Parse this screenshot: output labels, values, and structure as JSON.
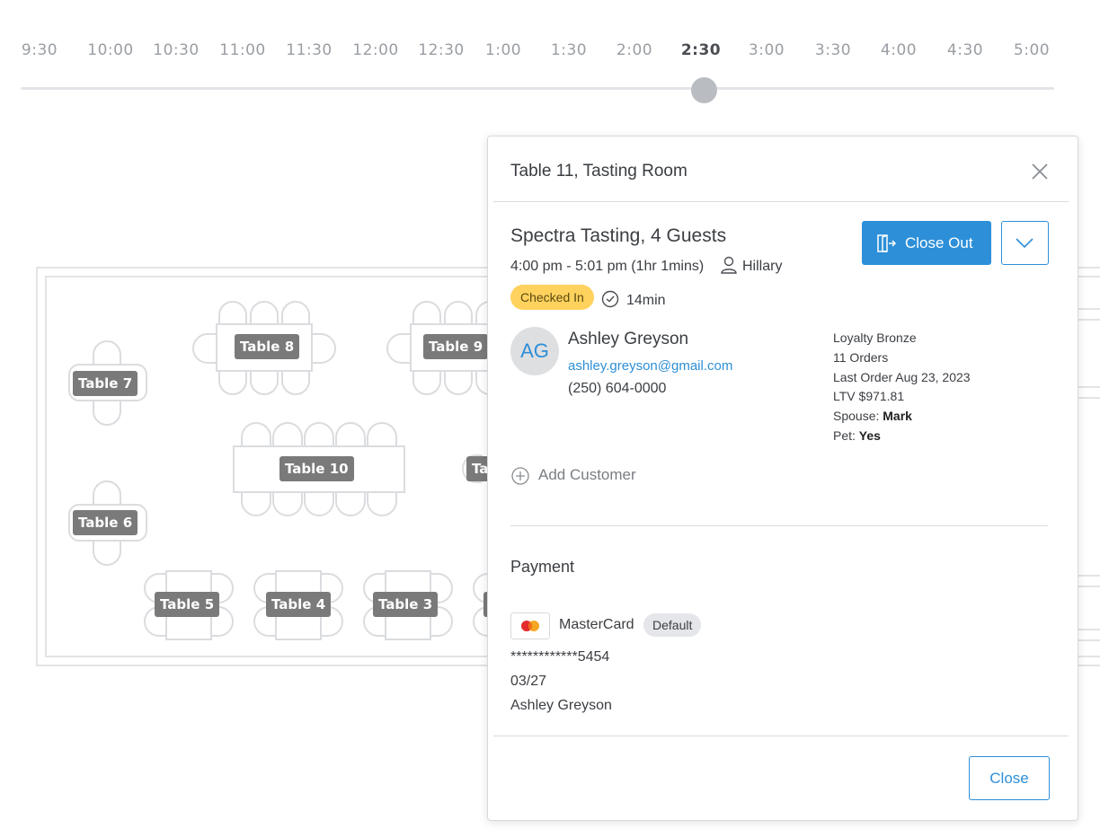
{
  "timeline": {
    "labels": [
      "9:30",
      "10:00",
      "10:30",
      "11:00",
      "11:30",
      "12:00",
      "12:30",
      "1:00",
      "1:30",
      "2:00",
      "2:30",
      "3:00",
      "3:30",
      "4:00",
      "4:30",
      "5:00"
    ],
    "selected": "2:30"
  },
  "floor": {
    "tables": {
      "t3": "Table 3",
      "t4": "Table 4",
      "t5": "Table 5",
      "t6": "Table 6",
      "t7": "Table 7",
      "t8": "Table 8",
      "t9": "Table 9",
      "t10": "Table 10",
      "t11_partial": "Ta"
    }
  },
  "modal": {
    "title": "Table 11, Tasting Room",
    "reservation": {
      "title": "Spectra Tasting, 4 Guests",
      "time": "4:00 pm - 5:01 pm (1hr 1mins)",
      "host": "Hillary",
      "status": "Checked In",
      "elapsed": "14min"
    },
    "close_out_label": "Close Out",
    "customer": {
      "initials": "AG",
      "name": "Ashley Greyson",
      "email": "ashley.greyson@gmail.com",
      "phone": "(250) 604-0000",
      "loyalty": "Loyalty Bronze",
      "orders": "11 Orders",
      "last_order": "Last Order Aug 23, 2023",
      "ltv": "LTV $971.81",
      "spouse_label": "Spouse:",
      "spouse_value": "Mark",
      "pet_label": "Pet:",
      "pet_value": "Yes"
    },
    "add_customer_label": "Add Customer",
    "payment": {
      "title": "Payment",
      "card_brand": "MasterCard",
      "default_badge": "Default",
      "card_number": "************5454",
      "expiry": "03/27",
      "holder": "Ashley Greyson"
    },
    "close_label": "Close"
  },
  "colors": {
    "accent": "#2d8fd8",
    "checked_in_badge": "#ffd25e",
    "table_tag": "#7a7a7a"
  },
  "icons": [
    "close-icon",
    "door-exit-icon",
    "chevron-down-icon",
    "person-icon",
    "clock-icon",
    "plus-circle-icon",
    "mastercard-icon"
  ]
}
